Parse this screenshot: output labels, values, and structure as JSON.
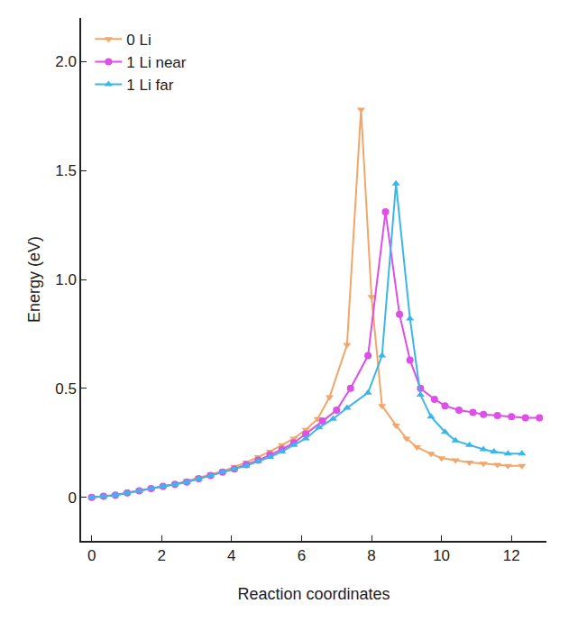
{
  "chart_data": {
    "type": "line",
    "x_label": "Reaction coordinates",
    "y_label": "Energy (eV)",
    "xlim": [
      -0.3,
      13
    ],
    "ylim": [
      -0.2,
      2.2
    ],
    "xticks": [
      0,
      2,
      4,
      6,
      8,
      10,
      12
    ],
    "yticks": [
      0,
      {
        "value": 0.5,
        "label": "0.5"
      },
      {
        "value": 1,
        "label": "1.0"
      },
      {
        "value": 1.5,
        "label": "1.5"
      },
      {
        "value": 2,
        "label": "2.0"
      }
    ],
    "grid": false,
    "legend": "top-left",
    "series": [
      {
        "name": "0 Li",
        "color": "#f2a66a",
        "marker": "triangle-down",
        "line_style": "solid",
        "x": [
          0,
          0.34,
          0.68,
          1.02,
          1.36,
          1.7,
          2.04,
          2.38,
          2.72,
          3.06,
          3.4,
          3.74,
          4.08,
          4.42,
          4.76,
          5.1,
          5.44,
          5.78,
          6.12,
          6.46,
          6.8,
          7.3,
          7.7,
          8.0,
          8.3,
          8.7,
          9.0,
          9.3,
          9.7,
          10.0,
          10.4,
          10.8,
          11.2,
          11.6,
          11.9,
          12.3
        ],
        "values": [
          0,
          0.005,
          0.01,
          0.02,
          0.03,
          0.04,
          0.05,
          0.06,
          0.075,
          0.09,
          0.105,
          0.12,
          0.14,
          0.16,
          0.185,
          0.21,
          0.24,
          0.27,
          0.31,
          0.36,
          0.46,
          0.7,
          1.78,
          0.92,
          0.42,
          0.33,
          0.27,
          0.23,
          0.2,
          0.18,
          0.17,
          0.16,
          0.155,
          0.15,
          0.145,
          0.145
        ]
      },
      {
        "name": "1 Li near",
        "color": "#dd4fe6",
        "marker": "circle",
        "line_style": "solid",
        "x": [
          0,
          0.34,
          0.68,
          1.02,
          1.36,
          1.7,
          2.04,
          2.38,
          2.72,
          3.06,
          3.4,
          3.74,
          4.08,
          4.42,
          4.76,
          5.1,
          5.44,
          5.78,
          6.12,
          6.6,
          7.0,
          7.4,
          7.9,
          8.4,
          8.8,
          9.1,
          9.4,
          9.8,
          10.1,
          10.5,
          10.9,
          11.2,
          11.6,
          12.0,
          12.4,
          12.8
        ],
        "values": [
          0,
          0.005,
          0.01,
          0.02,
          0.03,
          0.04,
          0.05,
          0.06,
          0.07,
          0.085,
          0.1,
          0.115,
          0.13,
          0.15,
          0.17,
          0.195,
          0.22,
          0.25,
          0.29,
          0.35,
          0.4,
          0.5,
          0.65,
          1.31,
          0.84,
          0.63,
          0.5,
          0.45,
          0.42,
          0.4,
          0.39,
          0.38,
          0.375,
          0.37,
          0.365,
          0.365
        ]
      },
      {
        "name": "1 Li far",
        "color": "#3cb6ea",
        "marker": "triangle-up",
        "line_style": "solid",
        "x": [
          0,
          0.34,
          0.68,
          1.02,
          1.36,
          1.7,
          2.04,
          2.38,
          2.72,
          3.06,
          3.4,
          3.74,
          4.08,
          4.42,
          4.76,
          5.1,
          5.44,
          5.78,
          6.12,
          6.5,
          6.9,
          7.3,
          7.9,
          8.3,
          8.7,
          9.1,
          9.4,
          9.7,
          10.1,
          10.4,
          10.8,
          11.2,
          11.5,
          11.9,
          12.3
        ],
        "values": [
          0,
          0.005,
          0.01,
          0.02,
          0.03,
          0.04,
          0.05,
          0.06,
          0.07,
          0.085,
          0.1,
          0.115,
          0.13,
          0.145,
          0.165,
          0.185,
          0.21,
          0.24,
          0.27,
          0.32,
          0.36,
          0.41,
          0.48,
          0.65,
          1.44,
          0.82,
          0.47,
          0.37,
          0.3,
          0.26,
          0.24,
          0.22,
          0.21,
          0.2,
          0.2
        ]
      }
    ]
  }
}
